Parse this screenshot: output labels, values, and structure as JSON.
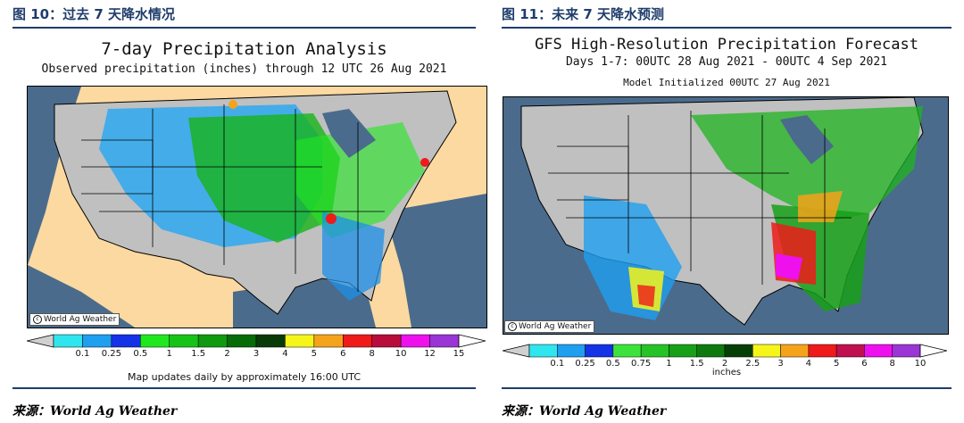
{
  "left_figure": {
    "caption": "图 10：过去 7 天降水情况",
    "source": "来源：World Ag Weather",
    "map_title": "7-day Precipitation Analysis",
    "map_subtitle": "Observed precipitation (inches) through 12 UTC 26 Aug 2021",
    "credit": "World Ag Weather",
    "legend_ticks": [
      "0.1",
      "0.25",
      "0.5",
      "1",
      "1.5",
      "2",
      "3",
      "4",
      "5",
      "6",
      "8",
      "10",
      "12",
      "15"
    ],
    "legend_colors": [
      "#2fe5ee",
      "#1e9ff0",
      "#1432e6",
      "#1fe81f",
      "#17c317",
      "#0f9a0f",
      "#076b07",
      "#083a08",
      "#f5f51a",
      "#f5a31a",
      "#ef1a1a",
      "#b80c3c",
      "#ee11ee",
      "#9a35d6"
    ],
    "footer": "Map updates daily by approximately 16:00 UTC"
  },
  "right_figure": {
    "caption": "图 11：未来 7 天降水预测",
    "source": "来源：World Ag Weather",
    "map_title": "GFS High-Resolution Precipitation Forecast",
    "map_subtitle": "Days 1-7: 00UTC 28 Aug 2021 - 00UTC 4 Sep 2021",
    "map_subtitle2": "Model Initialized 00UTC 27 Aug 2021",
    "credit": "World Ag Weather",
    "legend_ticks": [
      "0.1",
      "0.25",
      "0.5",
      "0.75",
      "1",
      "1.5",
      "2",
      "2.5",
      "3",
      "4",
      "5",
      "6",
      "8",
      "10"
    ],
    "legend_colors": [
      "#2fe5ee",
      "#1e9ff0",
      "#1432e6",
      "#3ce33c",
      "#26c326",
      "#17a017",
      "#0e7a0e",
      "#063f06",
      "#f5f51a",
      "#f5a31a",
      "#ef1a1a",
      "#c01050",
      "#ee11ee",
      "#9a35d6"
    ],
    "legend_unit": "inches"
  },
  "colors": {
    "heading": "#1f3d6b",
    "ocean": "#4a6b8c",
    "land_dry": "#c0c0c0",
    "mexico_canada": "#fbd9a0"
  }
}
